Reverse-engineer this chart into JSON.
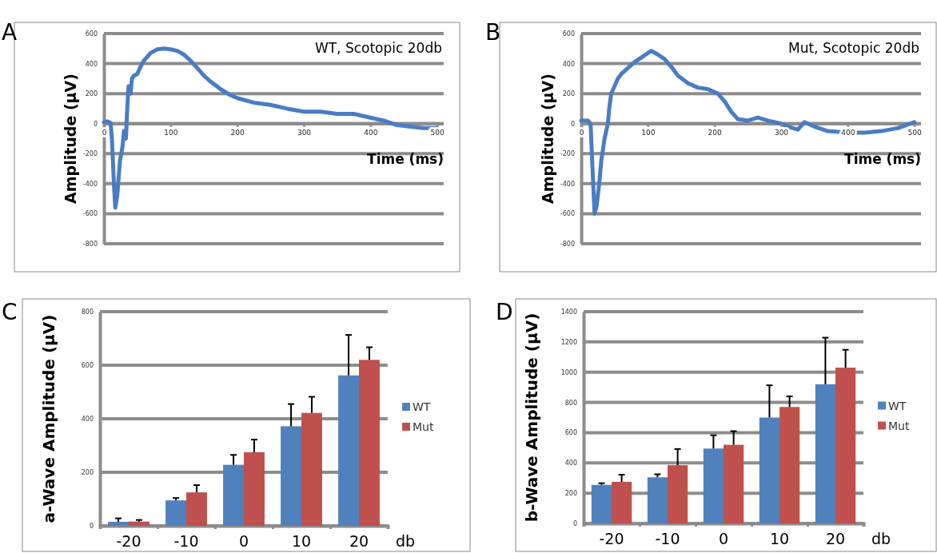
{
  "chart_data": [
    {
      "type": "line",
      "title": "WT, Scotopic 20db",
      "xlabel": "Time (ms)",
      "ylabel": "Amplitude (µV)",
      "annotations": [
        "A"
      ],
      "xlim": [
        0,
        510
      ],
      "xticks": [
        0,
        100,
        200,
        300,
        400,
        500
      ],
      "ylim": [
        -800,
        600
      ],
      "yticks": [
        -800,
        -600,
        -400,
        -200,
        0,
        200,
        400,
        600
      ],
      "grid": "y",
      "line_style": "solid",
      "series": [
        {
          "color": "#4a7cc4",
          "x": [
            0,
            5,
            10,
            12,
            15,
            17,
            20,
            24,
            28,
            30,
            33,
            35,
            37,
            40,
            42,
            45,
            50,
            55,
            60,
            70,
            80,
            90,
            100,
            110,
            120,
            130,
            140,
            150,
            160,
            175,
            190,
            200,
            225,
            250,
            275,
            300,
            325,
            350,
            375,
            400,
            420,
            440,
            460,
            480,
            500
          ],
          "values": [
            10,
            15,
            5,
            -100,
            -400,
            -560,
            -480,
            -250,
            -150,
            -50,
            -100,
            100,
            250,
            200,
            300,
            320,
            330,
            380,
            420,
            470,
            495,
            500,
            495,
            485,
            460,
            420,
            370,
            320,
            280,
            230,
            190,
            170,
            140,
            125,
            100,
            80,
            80,
            65,
            65,
            40,
            20,
            -10,
            -20,
            -30,
            -30
          ]
        }
      ]
    },
    {
      "type": "line",
      "title": "Mut, Scotopic 20db",
      "xlabel": "Time (ms)",
      "ylabel": "Amplitude (µV)",
      "annotations": [
        "B"
      ],
      "xlim": [
        0,
        510
      ],
      "xticks": [
        0,
        100,
        200,
        300,
        400,
        500
      ],
      "ylim": [
        -800,
        600
      ],
      "yticks": [
        -800,
        -600,
        -400,
        -200,
        0,
        200,
        400,
        600
      ],
      "grid": "y",
      "line_style": "solid",
      "series": [
        {
          "color": "#4a7cc4",
          "x": [
            0,
            10,
            14,
            17,
            20,
            23,
            27,
            30,
            35,
            40,
            42,
            45,
            50,
            55,
            60,
            70,
            80,
            90,
            100,
            105,
            115,
            125,
            135,
            145,
            160,
            175,
            190,
            205,
            215,
            225,
            235,
            250,
            265,
            280,
            300,
            310,
            325,
            335,
            350,
            370,
            400,
            425,
            450,
            475,
            500
          ],
          "values": [
            20,
            20,
            0,
            -300,
            -600,
            -550,
            -400,
            -250,
            -100,
            0,
            100,
            200,
            250,
            300,
            330,
            370,
            410,
            440,
            470,
            485,
            460,
            430,
            380,
            320,
            270,
            240,
            230,
            200,
            150,
            80,
            30,
            20,
            40,
            20,
            0,
            -20,
            -40,
            10,
            -20,
            -50,
            -60,
            -60,
            -50,
            -30,
            10
          ]
        }
      ]
    },
    {
      "type": "bar",
      "xlabel": "db",
      "ylabel": "a-Wave Amplitude (µV)",
      "annotations": [
        "C"
      ],
      "categories": [
        "-20",
        "-10",
        "0",
        "10",
        "20"
      ],
      "ylim": [
        0,
        800
      ],
      "yticks": [
        0,
        200,
        400,
        600,
        800
      ],
      "grid": "y",
      "legend": "right",
      "series": [
        {
          "name": "WT",
          "color": "#4f81bd",
          "values": [
            15,
            95,
            228,
            372,
            562
          ],
          "errors": [
            [
              15,
              28
            ],
            [
              95,
              104
            ],
            [
              228,
              265
            ],
            [
              372,
              455
            ],
            [
              562,
              713
            ]
          ]
        },
        {
          "name": "Mut",
          "color": "#c0504d",
          "values": [
            16,
            125,
            275,
            422,
            620
          ],
          "errors": [
            [
              16,
              22
            ],
            [
              125,
              152
            ],
            [
              275,
              322
            ],
            [
              422,
              482
            ],
            [
              620,
              667
            ]
          ]
        }
      ]
    },
    {
      "type": "bar",
      "xlabel": "db",
      "ylabel": "b-Wave Amplitude (µV)",
      "annotations": [
        "D"
      ],
      "categories": [
        "-20",
        "-10",
        "0",
        "10",
        "20"
      ],
      "ylim": [
        0,
        1400
      ],
      "yticks": [
        0,
        200,
        400,
        600,
        800,
        1000,
        1200,
        1400
      ],
      "grid": "y",
      "legend": "right",
      "series": [
        {
          "name": "WT",
          "color": "#4f81bd",
          "values": [
            255,
            305,
            495,
            700,
            920
          ],
          "errors": [
            [
              255,
              266
            ],
            [
              305,
              325
            ],
            [
              495,
              583
            ],
            [
              700,
              913
            ],
            [
              920,
              1228
            ]
          ]
        },
        {
          "name": "Mut",
          "color": "#c0504d",
          "values": [
            275,
            385,
            520,
            770,
            1030
          ],
          "errors": [
            [
              275,
              322
            ],
            [
              385,
              492
            ],
            [
              520,
              610
            ],
            [
              770,
              840
            ],
            [
              1030,
              1148
            ]
          ]
        }
      ]
    }
  ]
}
